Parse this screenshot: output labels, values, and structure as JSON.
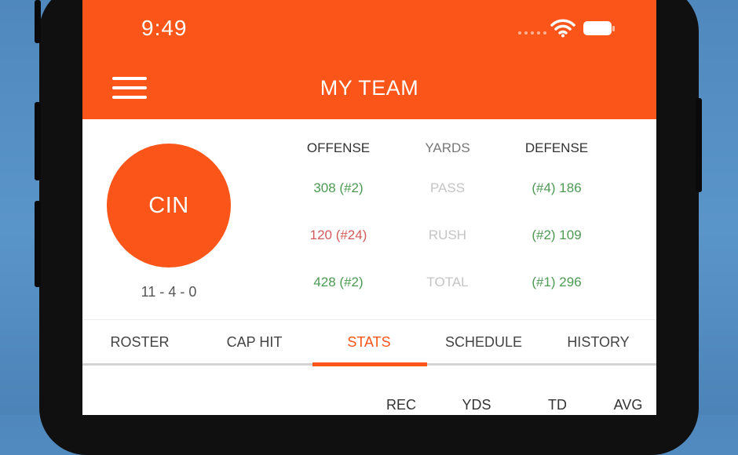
{
  "status_bar": {
    "time": "9:49"
  },
  "header": {
    "title": "MY TEAM",
    "menu_icon": "hamburger-menu-icon"
  },
  "team": {
    "abbr": "CIN",
    "record": "11 - 4 - 0"
  },
  "summary": {
    "headers": {
      "offense": "OFFENSE",
      "yards": "YARDS",
      "defense": "DEFENSE"
    },
    "rows": [
      {
        "offense": "308 (#2)",
        "category": "PASS",
        "defense": "(#4) 186"
      },
      {
        "offense": "120 (#24)",
        "category": "RUSH",
        "defense": "(#2) 109"
      },
      {
        "offense": "428 (#2)",
        "category": "TOTAL",
        "defense": "(#1) 296"
      }
    ]
  },
  "tabs": [
    {
      "label": "ROSTER",
      "active": false
    },
    {
      "label": "CAP HIT",
      "active": false
    },
    {
      "label": "STATS",
      "active": true
    },
    {
      "label": "SCHEDULE",
      "active": false
    },
    {
      "label": "HISTORY",
      "active": false
    }
  ],
  "stats_table": {
    "columns": [
      "REC",
      "YDS",
      "TD",
      "AVG"
    ]
  },
  "colors": {
    "accent": "#fb5519",
    "good": "#4c9a52",
    "bad": "#d35a5a",
    "background": "#4f88bd"
  }
}
